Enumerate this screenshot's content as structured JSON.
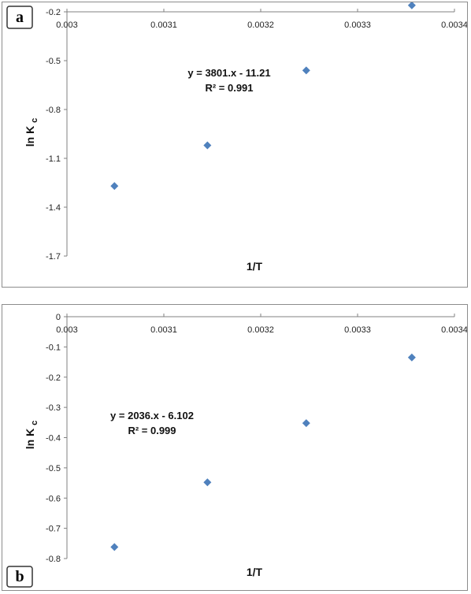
{
  "chart_data": [
    {
      "type": "scatter",
      "panel_label": "a",
      "xlabel": "1/T",
      "ylabel": "ln K",
      "ylabel_subscript": "c",
      "xlim": [
        0.003,
        0.0034
      ],
      "ylim": [
        -1.7,
        -0.2
      ],
      "xticks": [
        0.003,
        0.0031,
        0.0032,
        0.0033,
        0.0034
      ],
      "xtick_labels": [
        "0.003",
        "0.0031",
        "0.0032",
        "0.0033",
        "0.0034"
      ],
      "yticks": [
        -0.2,
        -0.5,
        -0.8,
        -1.1,
        -1.4,
        -1.7
      ],
      "ytick_labels": [
        "-0.2",
        "-0.5",
        "-0.8",
        "-1.1",
        "-1.4",
        "-1.7"
      ],
      "x_axis_position": "top",
      "grid": false,
      "points": [
        {
          "x": 0.003049,
          "y": -1.27
        },
        {
          "x": 0.003145,
          "y": -1.02
        },
        {
          "x": 0.003247,
          "y": -0.56
        },
        {
          "x": 0.003356,
          "y": -0.16
        }
      ],
      "trendline": {
        "slope": 3801,
        "intercept": -11.21,
        "x_range": [
          0.003049,
          0.003356
        ]
      },
      "equation": "y = 3801.x - 11.21",
      "r_squared": "R² = 0.991",
      "marker_color": "#4f81bd"
    },
    {
      "type": "scatter",
      "panel_label": "b",
      "xlabel": "1/T",
      "ylabel": "ln K",
      "ylabel_subscript": "c",
      "xlim": [
        0.003,
        0.0034
      ],
      "ylim": [
        -0.8,
        0
      ],
      "xticks": [
        0.003,
        0.0031,
        0.0032,
        0.0033,
        0.0034
      ],
      "xtick_labels": [
        "0.003",
        "0.0031",
        "0.0032",
        "0.0033",
        "0.0034"
      ],
      "yticks": [
        0,
        -0.1,
        -0.2,
        -0.3,
        -0.4,
        -0.5,
        -0.6,
        -0.7,
        -0.8
      ],
      "ytick_labels": [
        "0",
        "-0.1",
        "-0.2",
        "-0.3",
        "-0.4",
        "-0.5",
        "-0.6",
        "-0.7",
        "-0.8"
      ],
      "x_axis_position": "top",
      "grid": false,
      "points": [
        {
          "x": 0.003049,
          "y": -0.762
        },
        {
          "x": 0.003145,
          "y": -0.548
        },
        {
          "x": 0.003247,
          "y": -0.352
        },
        {
          "x": 0.003356,
          "y": -0.135
        }
      ],
      "trendline": {
        "slope": 2036,
        "intercept": -6.102,
        "x_range": [
          0.003049,
          0.003356
        ]
      },
      "equation": "y = 2036.x - 6.102",
      "r_squared": "R² = 0.999",
      "marker_color": "#4f81bd"
    }
  ]
}
